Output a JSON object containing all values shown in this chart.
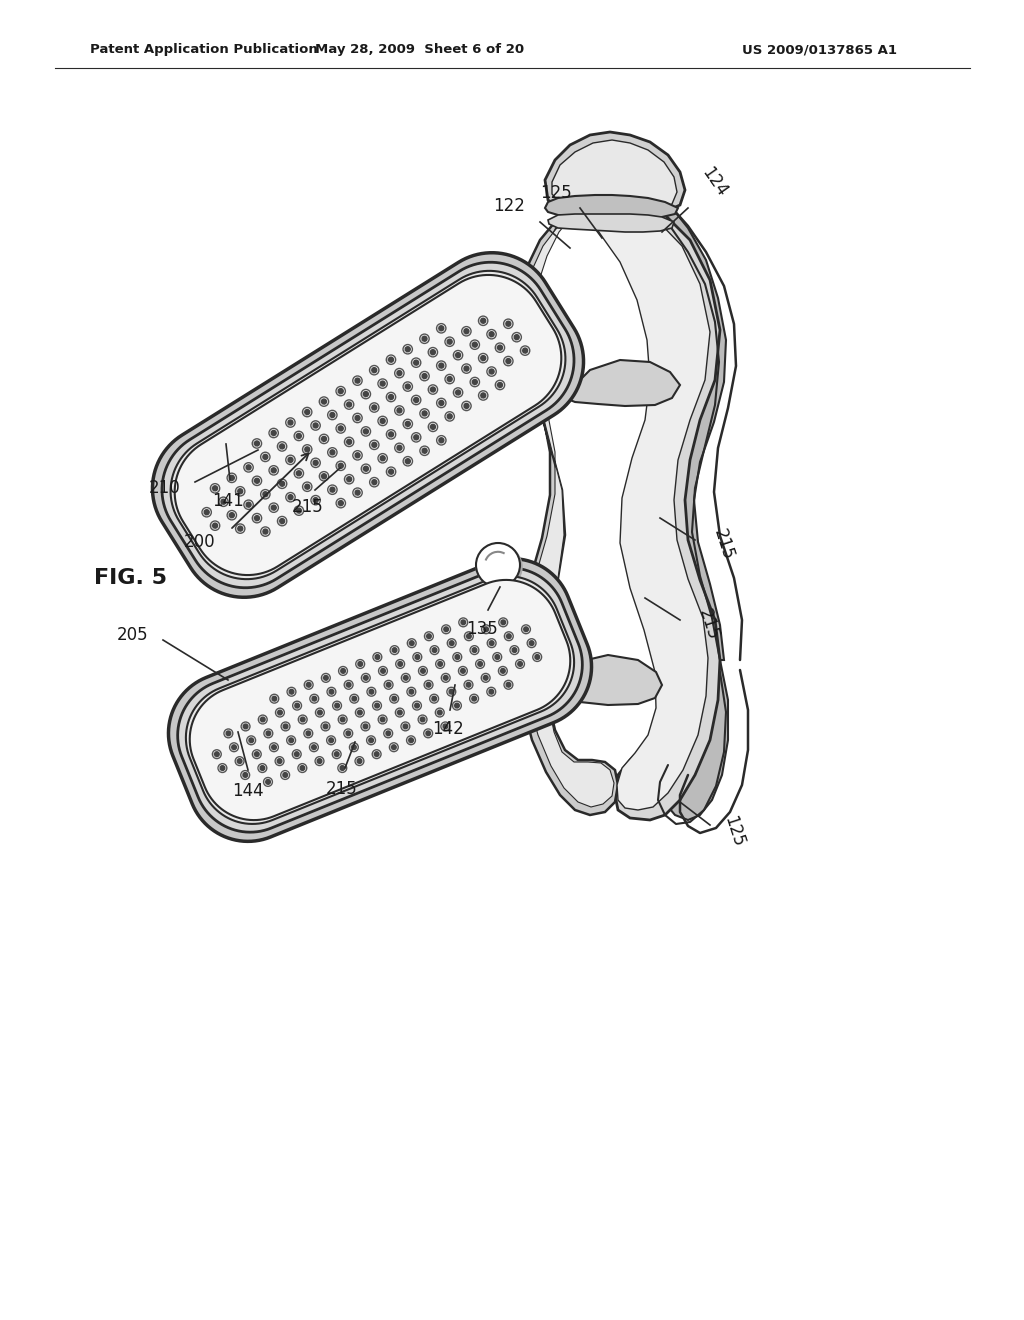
{
  "bg_color": "#ffffff",
  "header_left": "Patent Application Publication",
  "header_mid": "May 28, 2009  Sheet 6 of 20",
  "header_right": "US 2009/0137865 A1",
  "fig_label": "FIG. 5",
  "line_color": "#2a2a2a",
  "text_color": "#1a1a1a",
  "gray_light": "#e8e8e8",
  "gray_mid": "#c8c8c8",
  "gray_dark": "#888888",
  "white": "#ffffff"
}
